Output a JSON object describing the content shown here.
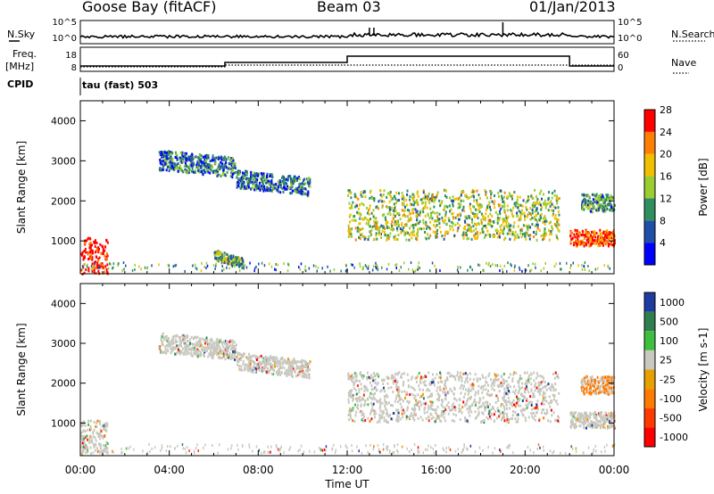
{
  "header": {
    "station": "Goose Bay (fitACF)",
    "beam": "Beam 03",
    "date": "01/Jan/2013"
  },
  "strips": {
    "nsky_label": "N.Sky",
    "nsky_ticks": [
      "10^5",
      "10^0"
    ],
    "nsearch_label": "N.Search",
    "nsearch_ticks": [
      "10^5",
      "10^0"
    ],
    "freq_label": "Freq.",
    "freq_unit": "[MHz]",
    "freq_ticks": [
      "18",
      "8"
    ],
    "nave_label": "Nave",
    "nave_ticks": [
      "60",
      "0"
    ],
    "cpid_label": "CPID",
    "cpid_value": "tau (fast) 503"
  },
  "chart_data": [
    {
      "type": "heatmap",
      "panel": "power",
      "ylabel": "Slant Range [km]",
      "y_ticks": [
        "1000",
        "2000",
        "3000",
        "4000"
      ],
      "ylim": [
        180,
        4500
      ],
      "colorbar_label": "Power [dB]",
      "colorbar_ticks": [
        "4",
        "8",
        "12",
        "16",
        "20",
        "24",
        "28"
      ],
      "colorbar_colors": [
        "#0000ff",
        "#1f4fa8",
        "#2f8f5f",
        "#9acd32",
        "#f0c000",
        "#ff8000",
        "#ff0000"
      ],
      "scatter_regions": [
        {
          "t0": 0.0,
          "t1": 1.2,
          "r0": 200,
          "r1": 1100,
          "level": 28
        },
        {
          "t0": 3.5,
          "t1": 7.0,
          "r0": 2800,
          "r1": 3300,
          "level": 8
        },
        {
          "t0": 7.0,
          "t1": 10.3,
          "r0": 2350,
          "r1": 2800,
          "level": 8
        },
        {
          "t0": 6.0,
          "t1": 7.3,
          "r0": 550,
          "r1": 800,
          "level": 12
        },
        {
          "t0": 12.0,
          "t1": 21.5,
          "r0": 1050,
          "r1": 2300,
          "level": 14
        },
        {
          "t0": 22.0,
          "t1": 24.0,
          "r0": 900,
          "r1": 1300,
          "level": 24
        },
        {
          "t0": 22.5,
          "t1": 24.0,
          "r0": 1750,
          "r1": 2200,
          "level": 10
        }
      ]
    },
    {
      "type": "heatmap",
      "panel": "velocity",
      "ylabel": "Slant Range [km]",
      "y_ticks": [
        "1000",
        "2000",
        "3000",
        "4000"
      ],
      "ylim": [
        180,
        4500
      ],
      "xlabel": "Time UT",
      "x_ticks": [
        "00:00",
        "04:00",
        "08:00",
        "12:00",
        "16:00",
        "20:00",
        "00:00"
      ],
      "xlim": [
        0,
        24
      ],
      "colorbar_label": "Velocity [m s-1]",
      "colorbar_ticks": [
        "1000",
        "500",
        "100",
        "25",
        "-25",
        "-100",
        "-500",
        "-1000"
      ],
      "colorbar_colors": [
        "#1e3ca0",
        "#2f7f4f",
        "#3fbf3f",
        "#c8c8c0",
        "#e6a000",
        "#ff7a00",
        "#ff3a00",
        "#ff0000"
      ],
      "scatter_regions": [
        {
          "t0": 0.0,
          "t1": 1.2,
          "r0": 200,
          "r1": 1100,
          "level": 25
        },
        {
          "t0": 3.5,
          "t1": 7.0,
          "r0": 2800,
          "r1": 3300,
          "level": 25
        },
        {
          "t0": 7.0,
          "t1": 10.3,
          "r0": 2350,
          "r1": 2800,
          "level": 25
        },
        {
          "t0": 12.0,
          "t1": 21.5,
          "r0": 1050,
          "r1": 2300,
          "level": 25
        },
        {
          "t0": 22.0,
          "t1": 24.0,
          "r0": 900,
          "r1": 1300,
          "level": 25
        },
        {
          "t0": 22.5,
          "t1": 24.0,
          "r0": 1750,
          "r1": 2200,
          "level": -100
        }
      ]
    }
  ]
}
